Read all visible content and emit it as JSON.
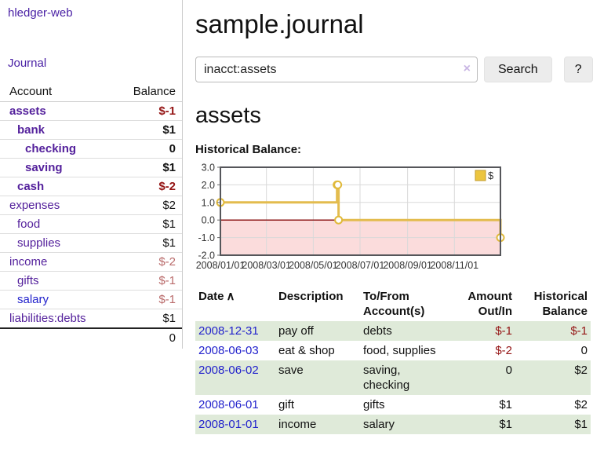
{
  "app": {
    "brand": "hledger-web"
  },
  "colors": {
    "link_purple": "#54219c",
    "link_blue": "#2222cc",
    "negative_strong": "#941414",
    "negative_muted": "#b96a6a",
    "row_green": "#dfead9",
    "chart_gold": "#e3bc4e",
    "chart_pink": "#fbdcdc",
    "chart_zero_red": "#8e1a1a"
  },
  "sidebar": {
    "journal_link": "Journal",
    "accounts": {
      "col_account": "Account",
      "col_balance": "Balance",
      "rows": [
        {
          "name": "assets",
          "balance": "$-1",
          "depth": 0,
          "active": true
        },
        {
          "name": "bank",
          "balance": "$1",
          "depth": 1,
          "active": true
        },
        {
          "name": "checking",
          "balance": "0",
          "depth": 2,
          "active": true
        },
        {
          "name": "saving",
          "balance": "$1",
          "depth": 2,
          "active": true
        },
        {
          "name": "cash",
          "balance": "$-2",
          "depth": 1,
          "active": true
        },
        {
          "name": "expenses",
          "balance": "$2",
          "depth": 0,
          "active": false
        },
        {
          "name": "food",
          "balance": "$1",
          "depth": 1,
          "active": false
        },
        {
          "name": "supplies",
          "balance": "$1",
          "depth": 1,
          "active": false
        },
        {
          "name": "income",
          "balance": "$-2",
          "depth": 0,
          "active": false
        },
        {
          "name": "gifts",
          "balance": "$-1",
          "depth": 1,
          "active": false
        },
        {
          "name": "salary",
          "balance": "$-1",
          "depth": 1,
          "active": false,
          "visited": false
        },
        {
          "name": "liabilities:debts",
          "balance": "$1",
          "depth": 0,
          "active": false
        }
      ],
      "total": "0"
    }
  },
  "main": {
    "title": "sample.journal",
    "search": {
      "value": "inacct:assets",
      "clear_icon": "×",
      "search_button": "Search",
      "help_button": "?"
    },
    "account_title": "assets",
    "chart_title": "Historical Balance:",
    "register": {
      "headers": {
        "date": "Date",
        "sort_icon": "∧",
        "description": "Description",
        "accounts": "To/From Account(s)",
        "amount": "Amount Out/In",
        "balance": "Historical Balance"
      },
      "rows": [
        {
          "date": "2008-12-31",
          "description": "pay off",
          "accounts": "debts",
          "amount": "$-1",
          "balance": "$-1"
        },
        {
          "date": "2008-06-03",
          "description": "eat & shop",
          "accounts": "food, supplies",
          "amount": "$-2",
          "balance": "0"
        },
        {
          "date": "2008-06-02",
          "description": "save",
          "accounts": "saving, checking",
          "amount": "0",
          "balance": "$2"
        },
        {
          "date": "2008-06-01",
          "description": "gift",
          "accounts": "gifts",
          "amount": "$1",
          "balance": "$2"
        },
        {
          "date": "2008-01-01",
          "description": "income",
          "accounts": "salary",
          "amount": "$1",
          "balance": "$1"
        }
      ]
    }
  },
  "chart_data": {
    "type": "line",
    "title": "Historical Balance",
    "step": true,
    "legend": [
      "$"
    ],
    "legend_position": "top-right",
    "grid": true,
    "x": [
      "2008-01-01",
      "2008-06-01",
      "2008-06-02",
      "2008-06-03",
      "2008-12-31"
    ],
    "series": [
      {
        "name": "$",
        "values": [
          1,
          2,
          2,
          0,
          -1
        ]
      }
    ],
    "xlim": [
      "2008-01-01",
      "2008-12-31"
    ],
    "ylim": [
      -2,
      3
    ],
    "yticks": [
      3,
      2,
      1,
      0,
      -1,
      -2
    ],
    "ytick_labels": [
      "3.0",
      "2.0",
      "1.0",
      "0.0",
      "-1.0",
      "-2.0"
    ],
    "xtick_dates": [
      "2008-01-01",
      "2008-03-01",
      "2008-05-01",
      "2008-07-01",
      "2008-09-01",
      "2008-11-01"
    ],
    "xtick_labels": [
      "2008/01/01",
      "2008/03/01",
      "2008/05/01",
      "2008/07/01",
      "2008/09/01",
      "2008/11/01"
    ],
    "colors": {
      "line": "#e3bc4e",
      "marker_fill": "#ffffff",
      "marker_stroke": "#e0b93a",
      "legend_fill": "#ecc53f",
      "legend_stroke": "#c29b2d",
      "negative_area": "#fbdcdc",
      "zero_line": "#8e1a1a",
      "border": "#55565a",
      "grid": "#d9d9d9",
      "tick": "#666666",
      "label": "#333333"
    }
  }
}
